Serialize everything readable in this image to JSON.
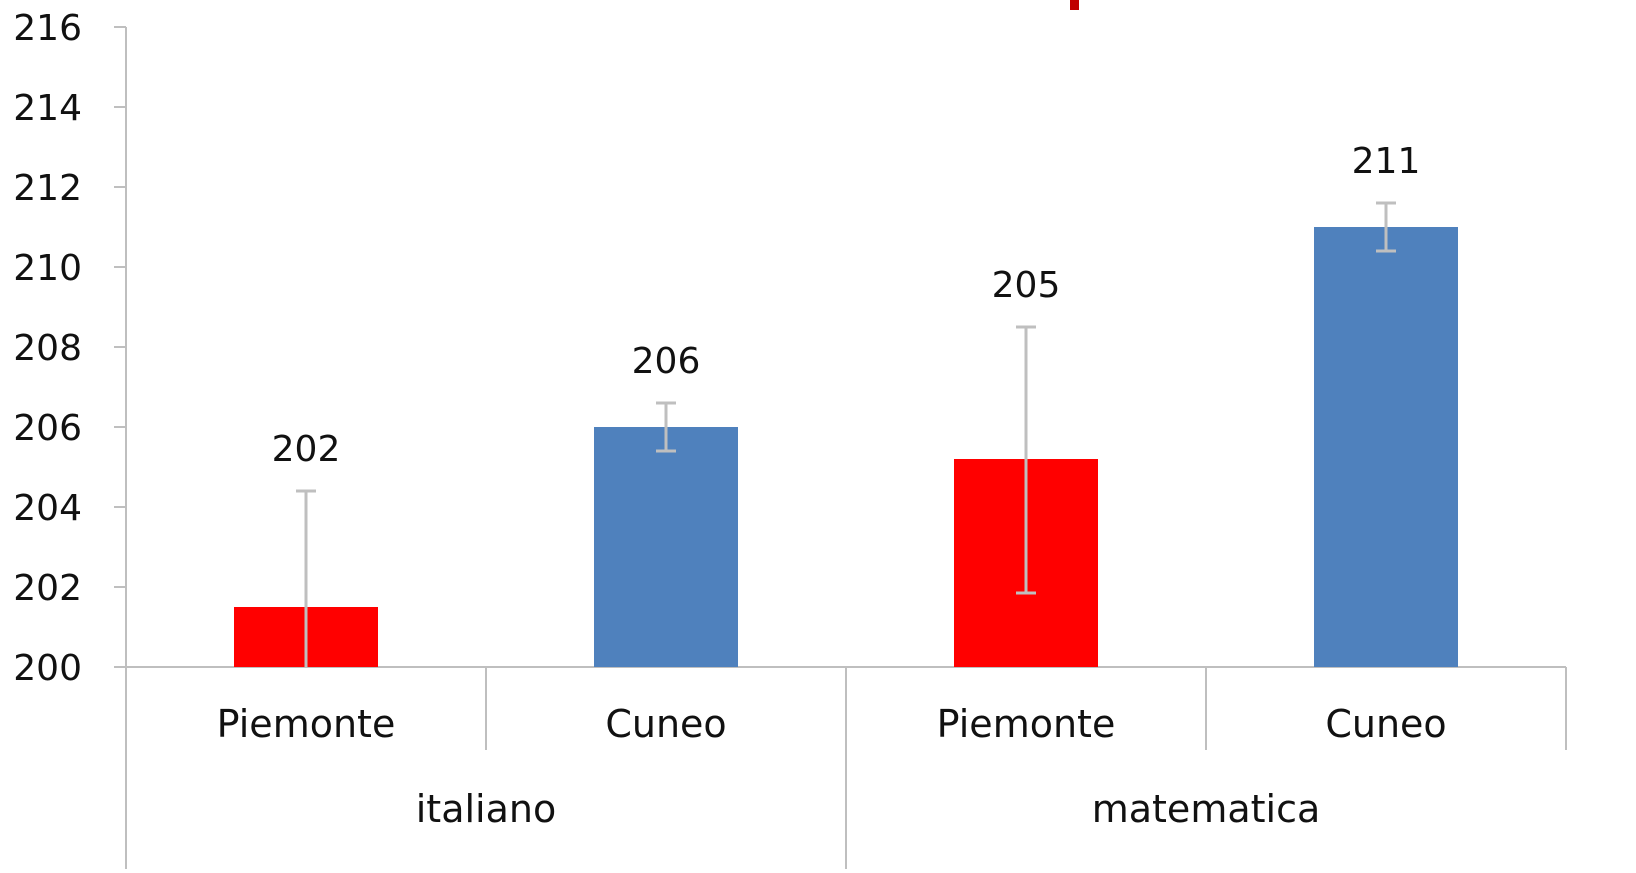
{
  "chart_data": {
    "type": "bar",
    "groups": [
      {
        "label": "italiano",
        "categories": [
          "Piemonte",
          "Cuneo"
        ]
      },
      {
        "label": "matematica",
        "categories": [
          "Piemonte",
          "Cuneo"
        ]
      }
    ],
    "bars": [
      {
        "group": "italiano",
        "category": "Piemonte",
        "value": 201.5,
        "data_label": "202",
        "error_low": 198.6,
        "error_high": 204.4,
        "color": "#ff0000"
      },
      {
        "group": "italiano",
        "category": "Cuneo",
        "value": 206.0,
        "data_label": "206",
        "error_low": 205.4,
        "error_high": 206.6,
        "color": "#4f81bd"
      },
      {
        "group": "matematica",
        "category": "Piemonte",
        "value": 205.2,
        "data_label": "205",
        "error_low": 201.85,
        "error_high": 208.5,
        "color": "#ff0000"
      },
      {
        "group": "matematica",
        "category": "Cuneo",
        "value": 211.0,
        "data_label": "211",
        "error_low": 210.4,
        "error_high": 211.6,
        "color": "#4f81bd"
      }
    ],
    "ylim": [
      200,
      216
    ],
    "yticks": [
      "200",
      "202",
      "204",
      "206",
      "208",
      "210",
      "212",
      "214",
      "216"
    ],
    "title": "",
    "xlabel": "",
    "ylabel": "",
    "grid": false,
    "legend": "none",
    "axis_color": "#bfbfbf",
    "error_bar_color": "#bfbfbf",
    "partial_title_mark_color": "#c00000"
  }
}
